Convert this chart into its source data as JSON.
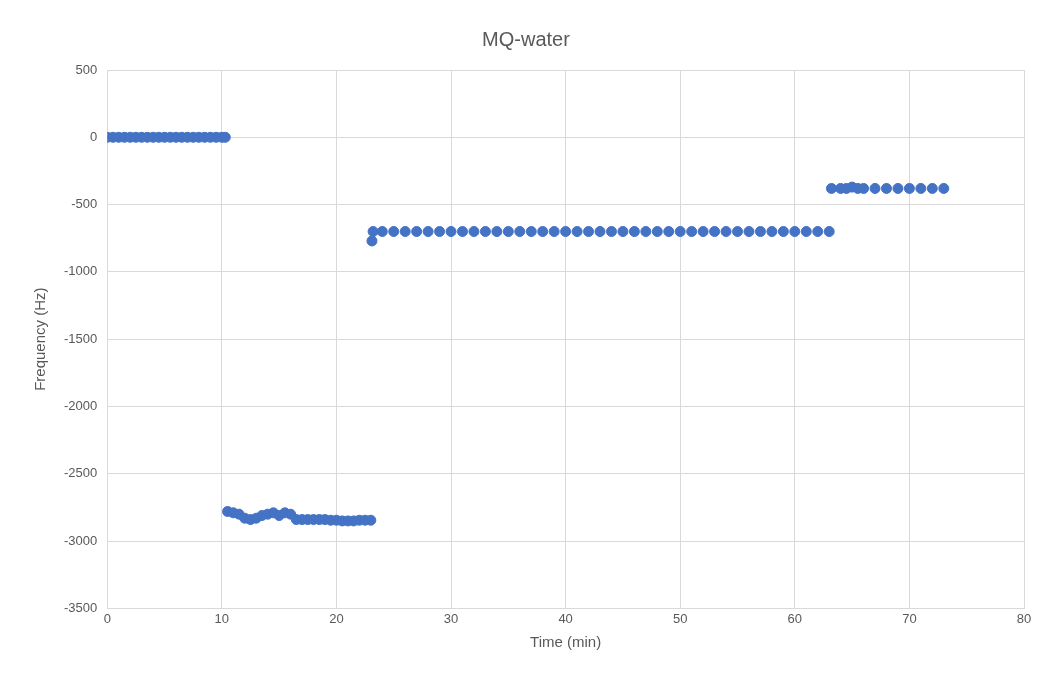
{
  "chart_data": {
    "type": "scatter",
    "title": "MQ-water",
    "xlabel": "Time (min)",
    "ylabel": "Frequency (Hz)",
    "xlim": [
      0,
      80
    ],
    "xticks": [
      0,
      10,
      20,
      30,
      40,
      50,
      60,
      70,
      80
    ],
    "ylim": [
      -3500,
      500
    ],
    "yticks": [
      -3500,
      -3000,
      -2500,
      -2000,
      -1500,
      -1000,
      -500,
      0,
      500
    ],
    "grid": true,
    "marker": "circle",
    "legend": false,
    "series": [
      {
        "color": "#4472c4",
        "x": [
          0,
          0.5,
          1,
          1.5,
          2,
          2.5,
          3,
          3.5,
          4,
          4.5,
          5,
          5.5,
          6,
          6.5,
          7,
          7.5,
          8,
          8.5,
          9,
          9.5,
          10,
          10.3,
          10.5,
          11,
          11.5,
          12,
          12.5,
          13,
          13.5,
          14,
          14.5,
          15,
          15.5,
          16,
          16.5,
          17,
          17.5,
          18,
          18.5,
          19,
          19.5,
          20,
          20.5,
          21,
          21.5,
          22,
          22.5,
          23,
          23.1,
          23.2,
          24,
          25,
          26,
          27,
          28,
          29,
          30,
          31,
          32,
          33,
          34,
          35,
          36,
          37,
          38,
          39,
          40,
          41,
          42,
          43,
          44,
          45,
          46,
          47,
          48,
          49,
          50,
          51,
          52,
          53,
          54,
          55,
          56,
          57,
          58,
          59,
          60,
          61,
          62,
          63,
          63.2,
          64,
          64.5,
          65,
          65.5,
          66,
          67,
          68,
          69,
          70,
          71,
          72,
          73
        ],
        "values": [
          0,
          0,
          0,
          0,
          0,
          0,
          0,
          0,
          0,
          0,
          0,
          0,
          0,
          0,
          0,
          0,
          0,
          0,
          0,
          0,
          0,
          0,
          -2780,
          -2790,
          -2800,
          -2830,
          -2840,
          -2830,
          -2810,
          -2800,
          -2790,
          -2810,
          -2790,
          -2800,
          -2840,
          -2840,
          -2840,
          -2840,
          -2840,
          -2840,
          -2845,
          -2845,
          -2850,
          -2850,
          -2850,
          -2845,
          -2845,
          -2845,
          -770,
          -700,
          -700,
          -700,
          -700,
          -700,
          -700,
          -700,
          -700,
          -700,
          -700,
          -700,
          -700,
          -700,
          -700,
          -700,
          -700,
          -700,
          -700,
          -700,
          -700,
          -700,
          -700,
          -700,
          -700,
          -700,
          -700,
          -700,
          -700,
          -700,
          -700,
          -700,
          -700,
          -700,
          -700,
          -700,
          -700,
          -700,
          -700,
          -700,
          -700,
          -700,
          -380,
          -380,
          -380,
          -370,
          -380,
          -380,
          -380,
          -380,
          -380,
          -380,
          -380,
          -380,
          -380
        ]
      }
    ]
  }
}
